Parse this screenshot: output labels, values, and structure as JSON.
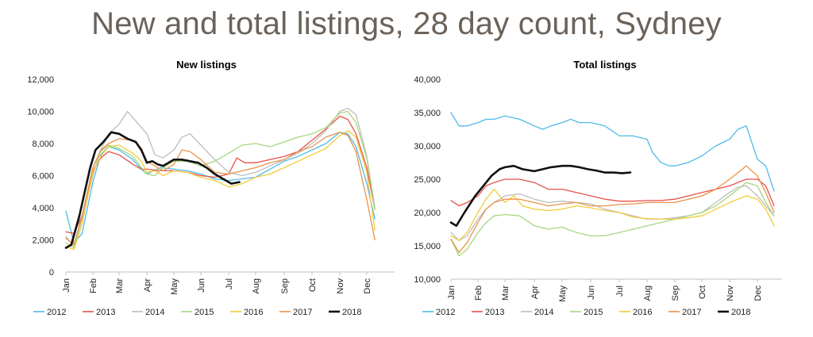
{
  "title": "New and total listings, 28 day count, Sydney",
  "months": [
    "Jan",
    "Feb",
    "Mar",
    "Apr",
    "May",
    "Jun",
    "Jul",
    "Aug",
    "Sep",
    "Oct",
    "Nov",
    "Dec"
  ],
  "series_colors": {
    "2012": "#4dbbe6",
    "2013": "#e8504a",
    "2014": "#bdbdbd",
    "2015": "#a6d67e",
    "2016": "#f2cb3a",
    "2017": "#e8924a",
    "2018": "#111111"
  },
  "chart_data": [
    {
      "type": "line",
      "title": "New listings",
      "ylim": [
        0,
        12000
      ],
      "yticks": [
        0,
        2000,
        4000,
        6000,
        8000,
        10000,
        12000
      ],
      "ytick_labels": [
        "0",
        "2,000",
        "4,000",
        "6,000",
        "8,000",
        "10,000",
        "12,000"
      ],
      "x": [
        "Jan",
        "Feb",
        "Mar",
        "Apr",
        "May",
        "Jun",
        "Jul",
        "Aug",
        "Sep",
        "Oct",
        "Nov",
        "Dec"
      ],
      "legend": "bottom",
      "series": [
        {
          "name": "2012",
          "x": [
            0,
            0.3,
            0.6,
            1.0,
            1.3,
            1.6,
            2.0,
            2.5,
            2.8,
            3.0,
            3.5,
            4.0,
            4.5,
            5.0,
            5.5,
            6.0,
            6.5,
            7.0,
            7.5,
            8.0,
            8.5,
            9.0,
            9.5,
            10.0,
            10.3,
            10.6,
            11.0,
            11.3
          ],
          "y": [
            3800,
            1800,
            2400,
            5600,
            7300,
            7800,
            7600,
            7000,
            6400,
            6100,
            6500,
            6400,
            6300,
            6100,
            5800,
            5700,
            5800,
            5900,
            6400,
            6900,
            7200,
            7600,
            8000,
            8700,
            8600,
            7800,
            5500,
            3300
          ]
        },
        {
          "name": "2013",
          "x": [
            0,
            0.3,
            0.6,
            1.0,
            1.3,
            1.6,
            2.0,
            2.5,
            2.8,
            3.0,
            3.5,
            4.0,
            4.5,
            5.0,
            5.5,
            6.0,
            6.3,
            6.6,
            7.0,
            7.5,
            8.0,
            8.5,
            9.0,
            9.5,
            10.0,
            10.3,
            10.6,
            11.0,
            11.3
          ],
          "y": [
            2500,
            2400,
            3500,
            6300,
            7100,
            7500,
            7300,
            6700,
            6400,
            6400,
            6300,
            6300,
            6200,
            6000,
            5900,
            6100,
            7100,
            6800,
            6800,
            7000,
            7200,
            7500,
            8200,
            8900,
            9700,
            9500,
            8600,
            6500,
            3900
          ]
        },
        {
          "name": "2014",
          "x": [
            0,
            0.3,
            0.6,
            1.0,
            1.3,
            1.6,
            2.0,
            2.3,
            2.6,
            3.0,
            3.3,
            3.6,
            4.0,
            4.3,
            4.6,
            5.0,
            5.5,
            6.0,
            6.5,
            7.0,
            7.5,
            8.0,
            8.5,
            9.0,
            9.5,
            10.0,
            10.3,
            10.6,
            11.0,
            11.3
          ],
          "y": [
            2200,
            1600,
            3300,
            6000,
            7600,
            8600,
            9200,
            10000,
            9400,
            8600,
            7300,
            7100,
            7600,
            8400,
            8600,
            7900,
            7000,
            6200,
            6000,
            6200,
            6600,
            7000,
            7400,
            8000,
            8800,
            10000,
            10200,
            9800,
            7200,
            4000
          ]
        },
        {
          "name": "2015",
          "x": [
            0,
            0.3,
            0.6,
            1.0,
            1.3,
            1.6,
            2.0,
            2.5,
            2.8,
            3.0,
            3.3,
            3.6,
            4.0,
            4.5,
            5.0,
            5.5,
            6.0,
            6.5,
            7.0,
            7.5,
            8.0,
            8.5,
            9.0,
            9.5,
            10.0,
            10.3,
            10.6,
            11.0,
            11.3
          ],
          "y": [
            1800,
            1500,
            3500,
            6500,
            7500,
            7900,
            7700,
            7200,
            6500,
            6100,
            6000,
            6500,
            6900,
            6900,
            6600,
            6900,
            7400,
            7900,
            8000,
            7800,
            8100,
            8400,
            8600,
            9000,
            9900,
            10000,
            9300,
            7100,
            3900
          ]
        },
        {
          "name": "2016",
          "x": [
            0,
            0.3,
            0.6,
            1.0,
            1.3,
            1.6,
            2.0,
            2.5,
            2.8,
            3.0,
            3.3,
            3.6,
            4.0,
            4.5,
            5.0,
            5.5,
            6.0,
            6.5,
            7.0,
            7.5,
            8.0,
            8.5,
            9.0,
            9.5,
            10.0,
            10.3,
            10.6,
            11.0,
            11.3
          ],
          "y": [
            1600,
            1400,
            3000,
            6200,
            7200,
            7800,
            7900,
            7400,
            6900,
            6200,
            6300,
            6000,
            6300,
            6200,
            5900,
            5700,
            5300,
            5500,
            5900,
            6100,
            6500,
            6900,
            7300,
            7700,
            8500,
            8800,
            8400,
            6200,
            2600
          ]
        },
        {
          "name": "2017",
          "x": [
            0,
            0.3,
            0.6,
            1.0,
            1.3,
            1.6,
            2.0,
            2.5,
            2.8,
            3.0,
            3.3,
            3.6,
            4.0,
            4.3,
            4.6,
            5.0,
            5.5,
            6.0,
            6.5,
            7.0,
            7.5,
            8.0,
            8.5,
            9.0,
            9.5,
            10.0,
            10.3,
            10.6,
            11.0,
            11.3
          ],
          "y": [
            2100,
            1700,
            3500,
            6500,
            7600,
            8000,
            8300,
            8200,
            7700,
            6900,
            6600,
            6300,
            6700,
            7600,
            7500,
            7000,
            6200,
            6100,
            6300,
            6500,
            6800,
            7000,
            7500,
            7800,
            8400,
            8700,
            8500,
            7500,
            4500,
            2000
          ]
        },
        {
          "name": "2018",
          "x": [
            0,
            0.2,
            0.5,
            0.9,
            1.1,
            1.4,
            1.7,
            2.0,
            2.3,
            2.6,
            2.8,
            3.0,
            3.2,
            3.4,
            3.6,
            4.0,
            4.3,
            4.6,
            4.9,
            5.2,
            5.5,
            5.8,
            6.1,
            6.4
          ],
          "y": [
            1500,
            1700,
            3500,
            6500,
            7600,
            8100,
            8700,
            8600,
            8300,
            8100,
            7600,
            6800,
            6900,
            6700,
            6600,
            7000,
            7000,
            6900,
            6800,
            6500,
            6100,
            5800,
            5500,
            5600
          ]
        }
      ]
    },
    {
      "type": "line",
      "title": "Total listings",
      "ylim": [
        10000,
        40000
      ],
      "yticks": [
        10000,
        15000,
        20000,
        25000,
        30000,
        35000,
        40000
      ],
      "ytick_labels": [
        "10,000",
        "15,000",
        "20,000",
        "25,000",
        "30,000",
        "35,000",
        "40,000"
      ],
      "x": [
        "Jan",
        "Feb",
        "Mar",
        "Apr",
        "May",
        "Jun",
        "Jul",
        "Aug",
        "Sep",
        "Oct",
        "Nov",
        "Dec"
      ],
      "legend": "bottom",
      "series": [
        {
          "name": "2012",
          "x": [
            0,
            0.3,
            0.6,
            1.0,
            1.3,
            1.6,
            2.0,
            2.5,
            3.0,
            3.3,
            3.6,
            4.0,
            4.3,
            4.6,
            5.0,
            5.5,
            6.0,
            6.5,
            7.0,
            7.2,
            7.5,
            7.8,
            8.0,
            8.5,
            9.0,
            9.5,
            10.0,
            10.3,
            10.6,
            11.0,
            11.3,
            11.6
          ],
          "y": [
            35000,
            33000,
            33000,
            33500,
            34000,
            34000,
            34500,
            34000,
            33000,
            32500,
            33000,
            33500,
            34000,
            33500,
            33500,
            33000,
            31500,
            31500,
            31000,
            29000,
            27500,
            27000,
            27000,
            27500,
            28500,
            30000,
            31000,
            32500,
            33000,
            28000,
            27000,
            23200
          ]
        },
        {
          "name": "2013",
          "x": [
            0,
            0.3,
            0.6,
            1.0,
            1.3,
            1.6,
            2.0,
            2.5,
            3.0,
            3.5,
            4.0,
            4.5,
            5.0,
            5.5,
            6.0,
            6.5,
            7.0,
            7.5,
            8.0,
            8.5,
            9.0,
            9.5,
            10.0,
            10.3,
            10.6,
            11.0,
            11.3,
            11.6
          ],
          "y": [
            21800,
            21000,
            21500,
            22500,
            24000,
            24500,
            25000,
            25000,
            24500,
            23500,
            23500,
            23000,
            22500,
            22000,
            21700,
            21700,
            21800,
            21800,
            22000,
            22500,
            23000,
            23500,
            24000,
            24500,
            25000,
            25000,
            24000,
            21000
          ]
        },
        {
          "name": "2014",
          "x": [
            0,
            0.3,
            0.6,
            1.0,
            1.3,
            1.6,
            2.0,
            2.5,
            3.0,
            3.5,
            4.0,
            4.5,
            5.0,
            5.5,
            6.0,
            6.5,
            7.0,
            7.5,
            8.0,
            8.5,
            9.0,
            9.5,
            10.0,
            10.3,
            10.6,
            11.0,
            11.3,
            11.6
          ],
          "y": [
            17000,
            15800,
            16500,
            19000,
            20500,
            21500,
            22500,
            22800,
            22000,
            21500,
            21700,
            21500,
            21300,
            20500,
            20000,
            19500,
            19000,
            19000,
            19200,
            19500,
            20000,
            21500,
            23000,
            23800,
            24000,
            22500,
            21000,
            19500
          ]
        },
        {
          "name": "2015",
          "x": [
            0,
            0.3,
            0.6,
            1.0,
            1.3,
            1.6,
            2.0,
            2.5,
            3.0,
            3.5,
            4.0,
            4.5,
            5.0,
            5.5,
            6.0,
            6.5,
            7.0,
            7.5,
            8.0,
            8.5,
            9.0,
            9.5,
            10.0,
            10.3,
            10.6,
            11.0,
            11.3,
            11.6
          ],
          "y": [
            16000,
            13500,
            14500,
            17000,
            18500,
            19500,
            19700,
            19500,
            18000,
            17500,
            17800,
            17000,
            16500,
            16500,
            17000,
            17500,
            18000,
            18500,
            19000,
            19500,
            20000,
            21000,
            22500,
            23500,
            24500,
            24000,
            21500,
            19500
          ]
        },
        {
          "name": "2016",
          "x": [
            0,
            0.3,
            0.6,
            1.0,
            1.3,
            1.6,
            2.0,
            2.3,
            2.6,
            3.0,
            3.5,
            4.0,
            4.5,
            5.0,
            5.5,
            6.0,
            6.5,
            7.0,
            7.5,
            8.0,
            8.5,
            9.0,
            9.5,
            10.0,
            10.3,
            10.6,
            11.0,
            11.3,
            11.6
          ],
          "y": [
            16500,
            15800,
            17000,
            20000,
            22000,
            23500,
            21500,
            22500,
            21000,
            20500,
            20300,
            20500,
            21000,
            20700,
            20300,
            20000,
            19300,
            19100,
            19000,
            19000,
            19200,
            19500,
            20500,
            21500,
            22000,
            22500,
            22000,
            20500,
            18000
          ]
        },
        {
          "name": "2017",
          "x": [
            0,
            0.3,
            0.6,
            1.0,
            1.3,
            1.6,
            2.0,
            2.5,
            3.0,
            3.5,
            4.0,
            4.5,
            5.0,
            5.5,
            6.0,
            6.5,
            7.0,
            7.5,
            8.0,
            8.5,
            9.0,
            9.5,
            10.0,
            10.3,
            10.6,
            11.0,
            11.3,
            11.6
          ],
          "y": [
            16000,
            14000,
            15500,
            18500,
            20500,
            21500,
            22000,
            22000,
            21500,
            21000,
            21300,
            21500,
            21000,
            21000,
            21200,
            21300,
            21500,
            21500,
            21500,
            22000,
            22500,
            23500,
            25000,
            26000,
            27000,
            25500,
            23000,
            20000
          ]
        },
        {
          "name": "2018",
          "x": [
            0,
            0.2,
            0.5,
            0.9,
            1.2,
            1.5,
            1.8,
            2.0,
            2.3,
            2.6,
            3.0,
            3.3,
            3.6,
            4.0,
            4.3,
            4.6,
            4.9,
            5.2,
            5.5,
            5.8,
            6.1,
            6.4
          ],
          "y": [
            18500,
            18000,
            20000,
            22500,
            24000,
            25500,
            26500,
            26800,
            27000,
            26500,
            26200,
            26500,
            26800,
            27000,
            27000,
            26800,
            26500,
            26300,
            26000,
            26000,
            25900,
            26000
          ]
        }
      ]
    }
  ]
}
